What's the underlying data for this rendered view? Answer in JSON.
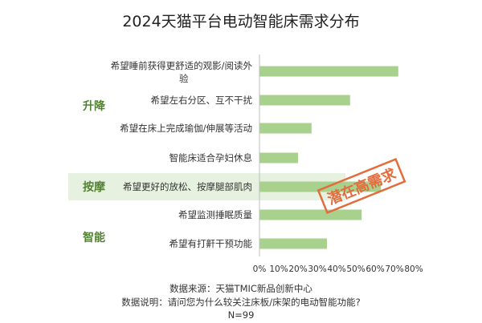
{
  "title": "2024天猫平台电动智能床需求分布",
  "chart_data": {
    "type": "bar",
    "orientation": "horizontal",
    "categories": [
      "希望睡前获得更舒适的观影/阅读外验",
      "希望左右分区、互不干扰",
      "希望在床上完成瑜伽/伸展等活动",
      "智能床适合孕妇休息",
      "希望更好的放松、按摩腿部肌肉",
      "希望监测捶眠质量",
      "希望有打鼾干预功能"
    ],
    "category_lines": [
      [
        "希望睡前获得更舒适的观影/阅读外",
        "验"
      ],
      [
        "希望左右分区、互不干扰"
      ],
      [
        "希望在床上完成瑜伽/伸展等活动"
      ],
      [
        "智能床适合孕妇休息"
      ],
      [
        "希望更好的放松、按摩腿部肌肉"
      ],
      [
        "希望监测捶眠质量"
      ],
      [
        "希望有打鼾干预功能"
      ]
    ],
    "values": [
      72,
      47,
      27,
      20,
      63,
      53,
      35
    ],
    "xlim": [
      0,
      80
    ],
    "x_ticks": [
      "0%",
      "10%",
      "20%",
      "30%",
      "40%",
      "50%",
      "60%",
      "70%",
      "80%"
    ],
    "groups": [
      {
        "label": "升降",
        "rows": [
          0,
          1,
          2,
          3
        ]
      },
      {
        "label": "按摩",
        "rows": [
          4
        ]
      },
      {
        "label": "智能",
        "rows": [
          5,
          6
        ]
      }
    ],
    "annotation": "潜在高需求",
    "highlight_row": 4,
    "grid": false,
    "colors": {
      "bar": "#a9d18e",
      "highlight_band": "#e2efd9",
      "group_label": "#548235",
      "stamp": "#e36c3c",
      "axis": "#bfbfbf"
    }
  },
  "footnote": {
    "source": "数据来源：天猫TMIC新品创新中心",
    "question": "数据说明：请问您为什么较关注床板/床架的电动智能功能?",
    "sample": "N=99"
  }
}
